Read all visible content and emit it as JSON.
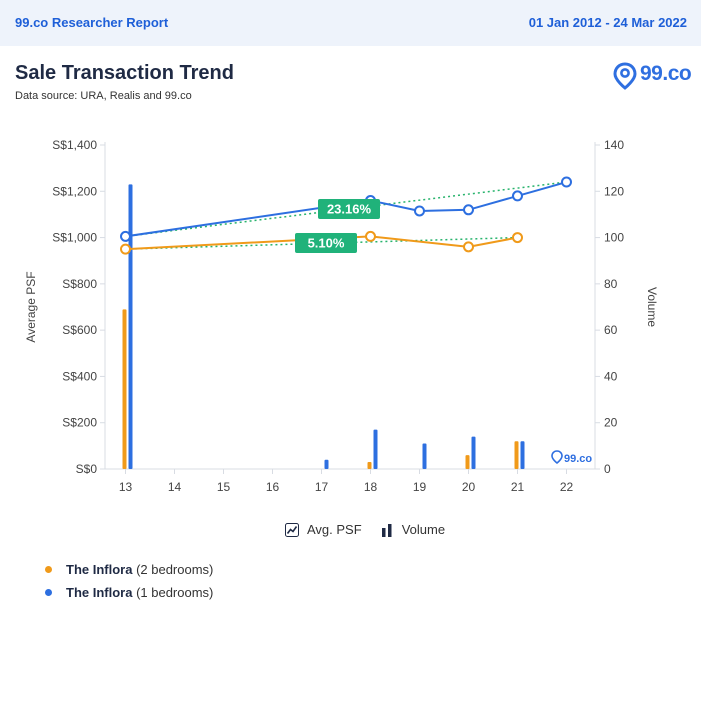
{
  "header": {
    "report_label": "99.co Researcher Report",
    "date_range": "01 Jan 2012 - 24 Mar 2022"
  },
  "title": "Sale Transaction Trend",
  "subtitle": "Data source: URA, Realis and 99.co",
  "brand": {
    "name": "99.co",
    "color": "#2f6fe0"
  },
  "legend": {
    "avg_psf_label": "Avg. PSF",
    "volume_label": "Volume",
    "series": [
      {
        "name": "The Inflora",
        "detail": " (2 bedrooms)",
        "color": "#f09a1a"
      },
      {
        "name": "The Inflora",
        "detail": " (1 bedrooms)",
        "color": "#2d6fe0"
      }
    ]
  },
  "chart_data": {
    "type": "bar+line",
    "categories": [
      "13",
      "14",
      "15",
      "16",
      "17",
      "18",
      "19",
      "20",
      "21",
      "22"
    ],
    "ylabel": "Average PSF",
    "y2label": "Volume",
    "ylim": [
      0,
      1400
    ],
    "y2lim": [
      0,
      140
    ],
    "y_ticks": [
      "S$0",
      "S$200",
      "S$400",
      "S$600",
      "S$800",
      "S$1,000",
      "S$1,200",
      "S$1,400"
    ],
    "y2_ticks": [
      "0",
      "20",
      "40",
      "60",
      "80",
      "100",
      "120",
      "140"
    ],
    "series": [
      {
        "name": "The Inflora (2 bedrooms)",
        "color": "#f09a1a",
        "avg_psf": [
          950,
          null,
          null,
          null,
          null,
          1005,
          null,
          960,
          1000,
          null
        ],
        "volume": [
          69,
          0,
          0,
          0,
          0,
          3,
          0,
          6,
          12,
          0
        ],
        "trend_label": "5.10%"
      },
      {
        "name": "The Inflora (1 bedrooms)",
        "color": "#2d6fe0",
        "avg_psf": [
          1005,
          null,
          null,
          null,
          null,
          1160,
          1115,
          1120,
          1180,
          1240
        ],
        "volume": [
          123,
          0,
          0,
          0,
          4,
          17,
          11,
          14,
          12,
          0
        ],
        "trend_label": "23.16%"
      }
    ],
    "grid": false,
    "legend_position": "bottom"
  }
}
